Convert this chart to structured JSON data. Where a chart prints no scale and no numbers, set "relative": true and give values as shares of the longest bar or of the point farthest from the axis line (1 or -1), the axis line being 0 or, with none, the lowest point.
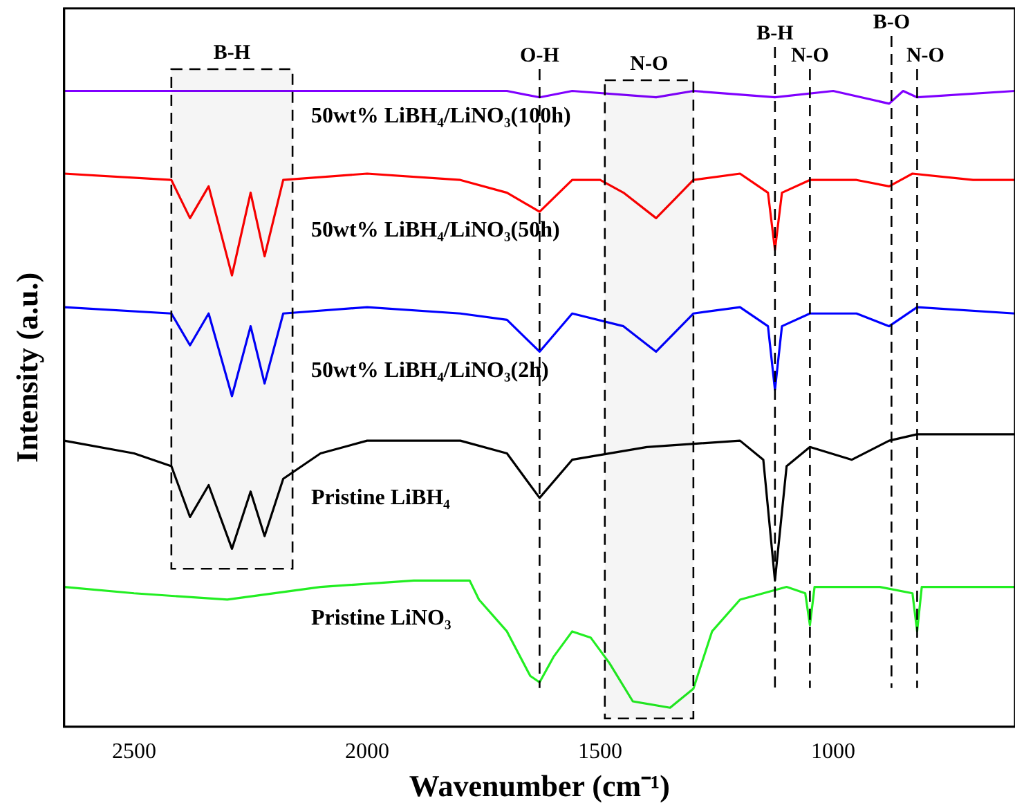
{
  "chart_data": {
    "type": "line",
    "xlabel": "Wavenumber (cm⁻¹)",
    "ylabel": "Intensity (a.u.)",
    "relative": true,
    "xlim": [
      2650,
      610
    ],
    "xticks": [
      2500,
      2000,
      1500,
      1000
    ],
    "grid": false,
    "legend": false,
    "marker": "none",
    "line_style": "solid",
    "series": [
      {
        "name": "50wt% LiBH₄/LiNO₃(100h)",
        "color": "#8000ff",
        "x": [
          2650,
          1700,
          1630,
          1560,
          1380,
          1300,
          1125,
          1000,
          880,
          850,
          820,
          610
        ],
        "values": [
          1.0,
          1.0,
          0.99,
          1.0,
          0.99,
          1.0,
          0.99,
          1.0,
          0.98,
          1.0,
          0.99,
          1.0
        ]
      },
      {
        "name": "50wt% LiBH₄/LiNO₃(50h)",
        "color": "#ff0000",
        "x": [
          2650,
          2420,
          2380,
          2340,
          2290,
          2250,
          2220,
          2180,
          2000,
          1800,
          1700,
          1630,
          1560,
          1500,
          1450,
          1380,
          1340,
          1300,
          1200,
          1140,
          1125,
          1110,
          1050,
          950,
          880,
          830,
          700,
          610
        ],
        "values": [
          0.87,
          0.86,
          0.8,
          0.85,
          0.71,
          0.84,
          0.74,
          0.86,
          0.87,
          0.86,
          0.84,
          0.81,
          0.86,
          0.86,
          0.84,
          0.8,
          0.83,
          0.86,
          0.87,
          0.84,
          0.75,
          0.84,
          0.86,
          0.86,
          0.85,
          0.87,
          0.86,
          0.86
        ]
      },
      {
        "name": "50wt% LiBH₄/LiNO₃(2h)",
        "color": "#0000ff",
        "x": [
          2650,
          2420,
          2380,
          2340,
          2290,
          2250,
          2220,
          2180,
          2000,
          1800,
          1700,
          1630,
          1560,
          1450,
          1380,
          1300,
          1200,
          1140,
          1125,
          1110,
          1050,
          950,
          880,
          820,
          610
        ],
        "values": [
          0.66,
          0.65,
          0.6,
          0.65,
          0.52,
          0.63,
          0.54,
          0.65,
          0.66,
          0.65,
          0.64,
          0.59,
          0.65,
          0.63,
          0.59,
          0.65,
          0.66,
          0.63,
          0.53,
          0.63,
          0.65,
          0.65,
          0.63,
          0.66,
          0.65
        ]
      },
      {
        "name": "Pristine LiBH₄",
        "color": "#000000",
        "x": [
          2650,
          2500,
          2420,
          2380,
          2340,
          2290,
          2250,
          2220,
          2180,
          2100,
          2000,
          1800,
          1700,
          1630,
          1560,
          1400,
          1200,
          1150,
          1125,
          1100,
          1050,
          960,
          880,
          820,
          610
        ],
        "values": [
          0.45,
          0.43,
          0.41,
          0.33,
          0.38,
          0.28,
          0.37,
          0.3,
          0.39,
          0.43,
          0.45,
          0.45,
          0.43,
          0.36,
          0.42,
          0.44,
          0.45,
          0.42,
          0.23,
          0.41,
          0.44,
          0.42,
          0.45,
          0.46,
          0.46
        ]
      },
      {
        "name": "Pristine LiNO₃",
        "color": "#22ee22",
        "x": [
          2650,
          2500,
          2300,
          2100,
          1900,
          1780,
          1760,
          1700,
          1650,
          1630,
          1600,
          1560,
          1520,
          1480,
          1430,
          1350,
          1300,
          1260,
          1200,
          1100,
          1060,
          1050,
          1040,
          900,
          830,
          820,
          810,
          700,
          610
        ],
        "values": [
          0.22,
          0.21,
          0.2,
          0.22,
          0.23,
          0.23,
          0.2,
          0.15,
          0.08,
          0.07,
          0.11,
          0.15,
          0.14,
          0.1,
          0.04,
          0.03,
          0.06,
          0.15,
          0.2,
          0.22,
          0.21,
          0.16,
          0.22,
          0.22,
          0.21,
          0.15,
          0.22,
          0.22,
          0.22
        ]
      }
    ],
    "bands": [
      {
        "axis": "x",
        "from": 2420,
        "to": 2160,
        "label": "B-H"
      },
      {
        "axis": "x",
        "from": 1490,
        "to": 1300,
        "label": "N-O"
      }
    ],
    "ref_lines": [
      {
        "axis": "x",
        "value": 1630,
        "label": "O-H",
        "line_style": "dashed"
      },
      {
        "axis": "x",
        "value": 1125,
        "label": "B-H",
        "line_style": "dashed"
      },
      {
        "axis": "x",
        "value": 1050,
        "label": "N-O",
        "line_style": "dashed"
      },
      {
        "axis": "x",
        "value": 875,
        "label": "B-O",
        "line_style": "dashed"
      },
      {
        "axis": "x",
        "value": 820,
        "label": "N-O",
        "line_style": "dashed"
      }
    ]
  }
}
